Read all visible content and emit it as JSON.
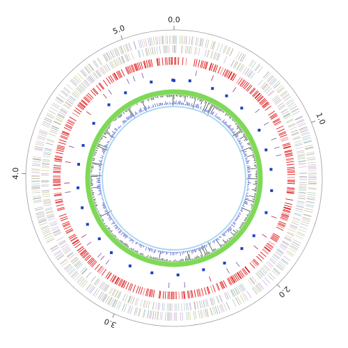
{
  "chart_data": {
    "type": "circular",
    "xlim": [
      0,
      5.3
    ],
    "xticks": [
      {
        "value": 0,
        "label": "0.0"
      },
      {
        "value": 1,
        "label": "1.0"
      },
      {
        "value": 2,
        "label": "2.0"
      },
      {
        "value": 3,
        "label": "3.0"
      },
      {
        "value": 4,
        "label": "4.0"
      },
      {
        "value": 5,
        "label": "5.0"
      }
    ]
  }
}
